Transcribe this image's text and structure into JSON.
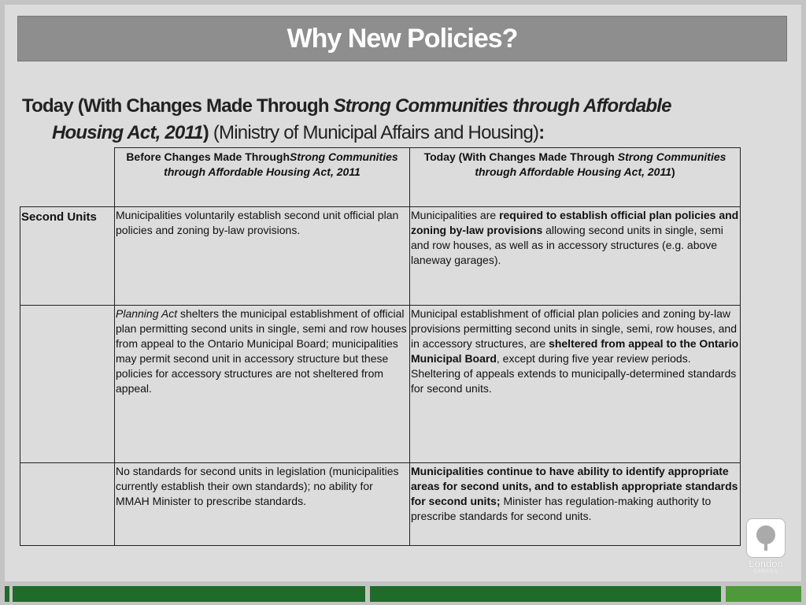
{
  "header": {
    "title": "Why New Policies?"
  },
  "subtitle": [
    {
      "text": "Today (With Changes Made Through ",
      "bold": true
    },
    {
      "text": "Strong Communities through Affordable Housing Act, 2011",
      "bold": true,
      "italic": true
    },
    {
      "text": ")",
      "bold": true
    },
    {
      "text": " (Ministry of Municipal Affairs and Housing)"
    },
    {
      "text": ":",
      "bold": true
    }
  ],
  "table": {
    "columns": [
      [
        {
          "text": "Before Changes Made Through",
          "bold": true
        },
        {
          "text": "Strong Communities through Affordable Housing Act, 2011",
          "bold": true,
          "italic": true
        }
      ],
      [
        {
          "text": "Today (With Changes Made Through ",
          "bold": true
        },
        {
          "text": "Strong Communities through Affordable Housing Act, 2011",
          "bold": true,
          "italic": true
        },
        {
          "text": ")",
          "bold": true
        }
      ]
    ],
    "rows": [
      {
        "label": "Second Units",
        "cells": [
          [
            {
              "text": "Municipalities voluntarily establish second unit official plan policies and zoning by-law provisions."
            }
          ],
          [
            {
              "text": "Municipalities are "
            },
            {
              "text": "required to establish official plan policies and zoning by-law provisions",
              "bold": true
            },
            {
              "text": " allowing second units in single, semi and row houses, as well as in accessory structures (e.g. above laneway garages)."
            }
          ]
        ]
      },
      {
        "cells": [
          [
            {
              "text": "Planning Act",
              "italic": true
            },
            {
              "text": " shelters the municipal establishment of official plan permitting second units in single, semi and row houses from appeal to the Ontario Municipal Board; municipalities may permit second unit in accessory structure but these policies for accessory structures are not sheltered from appeal."
            }
          ],
          [
            {
              "text": "Municipal establishment of official plan policies and zoning by-law provisions permitting second units in single, semi, row houses, and in accessory structures, are "
            },
            {
              "text": "sheltered from appeal to the Ontario Municipal Board",
              "bold": true
            },
            {
              "text": ", except during five year review periods. Sheltering of appeals extends to municipally-determined standards for second units."
            }
          ]
        ]
      },
      {
        "cells": [
          [
            {
              "text": "No standards for second units in legislation (municipalities currently establish their own standards); no ability for MMAH Minister to prescribe standards."
            }
          ],
          [
            {
              "text": "Municipalities continue to have ability to identify appropriate areas for second units, and to establish appropriate standards for second units;",
              "bold": true
            },
            {
              "text": " Minister has regulation-making authority to prescribe standards for second units."
            }
          ]
        ]
      }
    ]
  },
  "logo": {
    "name": "London",
    "country": "CANADA"
  }
}
